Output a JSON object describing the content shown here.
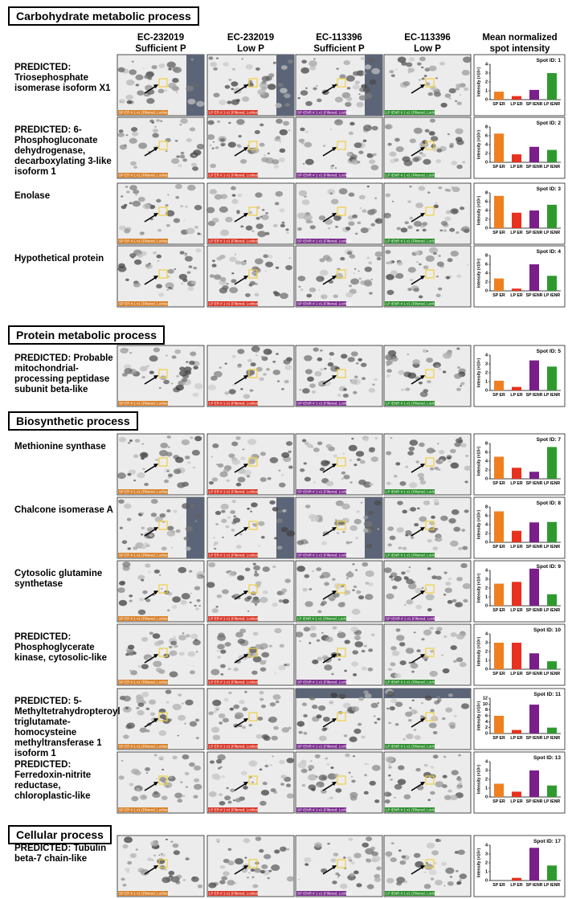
{
  "headers": [
    [
      "EC-232019",
      "Sufficient P"
    ],
    [
      "EC-232019",
      "Low P"
    ],
    [
      "EC-113396",
      "Sufficient P"
    ],
    [
      "EC-113396",
      "Low P"
    ],
    [
      "Mean normalized",
      "spot intensity"
    ]
  ],
  "sections": [
    {
      "title": "Carbohydrate metabolic process",
      "rows": [
        {
          "name": "PREDICTED: Triosephosphate isomerase isoform X1",
          "gels": [
            {
              "label": "SP ER # 1 v1 (Filtered, Locked)",
              "color": "#d9822b"
            },
            {
              "label": "LP ER # 1 v1 (Filtered, Locked)",
              "color": "#d93a2b"
            },
            {
              "label": "SP IENR # 1 v1 (Filtered, Locked)",
              "color": "#7b2d8e"
            },
            {
              "label": "LP IENR # 1 v1 (Filtered, Locked)",
              "color": "#2f8f2f"
            }
          ]
        },
        {
          "name": "PREDICTED: 6-Phosphogluconate dehydrogenase, decarboxylating 3-like isoform 1",
          "gels": [
            {
              "label": "SP ER # 1 v1 (Filtered, Locked)",
              "color": "#d9822b"
            },
            {
              "label": "LP ER # 1 v1 (Filtered, Locked)",
              "color": "#d93a2b"
            },
            {
              "label": "SP IENR # 1 v1 (Filtered, Locked)",
              "color": "#7b2d8e"
            },
            {
              "label": "LP IENR # 1 v1 (Filtered, Locked)",
              "color": "#2f8f2f"
            }
          ]
        },
        {
          "name": "Enolase",
          "gels": [
            {
              "label": "SP ER # 1 v1 (Filtered, Locked)",
              "color": "#d9822b"
            },
            {
              "label": "LP ER # 1 v1 (Filtered, Locked)",
              "color": "#d93a2b"
            },
            {
              "label": "SP IENR # 1 v1 (Filtered, Locked)",
              "color": "#7b2d8e"
            },
            {
              "label": "LP IENR # 1 v1 (Filtered, Locked)",
              "color": "#2f8f2f"
            }
          ]
        },
        {
          "name": "Hypothetical protein",
          "gels": [
            {
              "label": "SP ER # 1 v1 (Filtered, Locked)",
              "color": "#d9822b"
            },
            {
              "label": "LP ER # 1 v1 (Filtered, Locked)",
              "color": "#d93a2b"
            },
            {
              "label": "SP IENR # 1 v1 (Filtered, Locked)",
              "color": "#7b2d8e"
            },
            {
              "label": "LP IENR # 1 v1 (Filtered, Locked)",
              "color": "#2f8f2f"
            }
          ]
        }
      ]
    },
    {
      "title": "Protein metabolic process",
      "rows": [
        {
          "name": "PREDICTED: Probable mitochondrial-processing peptidase subunit beta-like",
          "gels": [
            {
              "label": "SP ER # 1 v1 (Filtered, Locked)",
              "color": "#d9822b"
            },
            {
              "label": "LP ER # 1 v1 (Filtered, Locked)",
              "color": "#d93a2b"
            },
            {
              "label": "SP IENR # 1 v1 (Filtered, Locked)",
              "color": "#7b2d8e"
            },
            {
              "label": "LP IENR # 1 v1 (Filtered, Locked)",
              "color": "#2f8f2f"
            }
          ]
        }
      ]
    },
    {
      "title": "Biosynthetic process",
      "rows": [
        {
          "name": "Methionine synthase",
          "gels": [
            {
              "label": "SP ER # 1 v1 (Filtered, Locked)",
              "color": "#d9822b"
            },
            {
              "label": "LP ER # 1 v1 (Filtered, Locked)",
              "color": "#d93a2b"
            },
            {
              "label": "SP IENR # 1 v1 (Filtered, Locked)",
              "color": "#7b2d8e"
            },
            {
              "label": "LP IENR # 1 v1 (Filtered, Locked)",
              "color": "#2f8f2f"
            }
          ]
        },
        {
          "name": "Chalcone isomerase A",
          "gels": [
            {
              "label": "SP ER # 1 v1 (Filtered, Locked)",
              "color": "#d9822b"
            },
            {
              "label": "LP ER # 1 v1 (Filtered, Locked)",
              "color": "#d93a2b"
            },
            {
              "label": "SP IENR # 1 v1 (Filtered, Locked)",
              "color": "#7b2d8e"
            },
            {
              "label": "LP IENR # 1 v1 (Filtered, Locked)",
              "color": "#2f8f2f"
            }
          ]
        },
        {
          "name": "Cytosolic glutamine synthetase",
          "gels": [
            {
              "label": "SP ER # 1 v1 (Filtered, Locked)",
              "color": "#d9822b"
            },
            {
              "label": "LP ER # 1 v1 (Filtered, Locked)",
              "color": "#d93a2b"
            },
            {
              "label": "LP IENR # 1 v1 (Filtered, Locked)",
              "color": "#2f8f2f"
            },
            {
              "label": "SP IENR # 1 v1 (Filtered, Locked)",
              "color": "#7b2d8e"
            }
          ]
        },
        {
          "name": "PREDICTED: Phosphoglycerate kinase, cytosolic-like",
          "gels": [
            {
              "label": "SP ER # 1 v1 (Filtered, Locked)",
              "color": "#d9822b"
            },
            {
              "label": "LP ER # 1 v1 (Filtered, Locked)",
              "color": "#d93a2b"
            },
            {
              "label": "SP IENR # 1 v1 (Filtered, Locked)",
              "color": "#7b2d8e"
            },
            {
              "label": "LP IENR # 1 v1 (Filtered, Locked)",
              "color": "#2f8f2f"
            }
          ]
        },
        {
          "name": "PREDICTED: 5-Methyltetrahydropteroyl triglutamate-homocysteine methyltransferase 1 isoform 1",
          "gels": [
            {
              "label": "SP ER # 1 v1 (Filtered, Locked)",
              "color": "#d9822b"
            },
            {
              "label": "LP ER # 1 v1 (Filtered, Locked)",
              "color": "#d93a2b"
            },
            {
              "label": "SP IENR # 1 v1 (Filtered, Locked)",
              "color": "#7b2d8e"
            },
            {
              "label": "LP IENR # 1 v1 (Filtered, Locked)",
              "color": "#2f8f2f"
            }
          ]
        },
        {
          "name": "PREDICTED: Ferredoxin-nitrite reductase, chloroplastic-like",
          "gels": [
            {
              "label": "SP ER # 1 v1 (Filtered, Locked)",
              "color": "#d9822b"
            },
            {
              "label": "LP ER # 1 v1 (Filtered, Locked)",
              "color": "#d93a2b"
            },
            {
              "label": "SP IENR # 1 v1 (Filtered, Locked)",
              "color": "#7b2d8e"
            },
            {
              "label": "LP IENR # 1 v1 (Filtered, Locked)",
              "color": "#2f8f2f"
            }
          ]
        }
      ]
    },
    {
      "title": "Cellular process",
      "rows": [
        {
          "name": "PREDICTED: Tubulin beta-7 chain-like",
          "gels": [
            {
              "label": "SP ER # 1 v1 (Filtered, Locked)",
              "color": "#d9822b"
            },
            {
              "label": "LP ER # 1 v1 (Filtered, Locked)",
              "color": "#d93a2b"
            },
            {
              "label": "SP IENR # 1 v1 (Filtered, Locked)",
              "color": "#7b2d8e"
            },
            {
              "label": "LP IENR # 1 v1 (Filtered, Locked)",
              "color": "#2f8f2f"
            }
          ]
        }
      ]
    }
  ],
  "chart_data": [
    {
      "type": "bar",
      "title": "Spot ID: 1",
      "ylabel": "Intensity (×10⁴)",
      "categories": [
        "SP ER",
        "LP ER",
        "SP IENR",
        "LP IENR"
      ],
      "colors": [
        "#f07f1f",
        "#e8311e",
        "#7a1f8a",
        "#2e9a2e"
      ],
      "values": [
        0.9,
        0.4,
        1.1,
        3.0
      ],
      "ylim": [
        0,
        4
      ],
      "yticks": [
        0,
        1,
        2,
        3,
        4
      ]
    },
    {
      "type": "bar",
      "title": "Spot ID: 2",
      "ylabel": "Intensity (×10⁴)",
      "categories": [
        "SP ER",
        "LP ER",
        "SP IENR",
        "LP IENR"
      ],
      "colors": [
        "#f07f1f",
        "#e8311e",
        "#7a1f8a",
        "#2e9a2e"
      ],
      "values": [
        6.5,
        1.8,
        3.5,
        2.8
      ],
      "ylim": [
        0,
        8
      ],
      "yticks": [
        0,
        2,
        4,
        6,
        8
      ]
    },
    {
      "type": "bar",
      "title": "Spot ID: 3",
      "ylabel": "Intensity (×10⁴)",
      "categories": [
        "SP ER",
        "LP ER",
        "SP IENR",
        "LP IENR"
      ],
      "colors": [
        "#f07f1f",
        "#e8311e",
        "#7a1f8a",
        "#2e9a2e"
      ],
      "values": [
        7.3,
        3.5,
        4.0,
        5.3
      ],
      "ylim": [
        0,
        8
      ],
      "yticks": [
        0,
        2,
        4,
        6,
        8
      ]
    },
    {
      "type": "bar",
      "title": "Spot ID: 4",
      "ylabel": "Intensity (×10⁴)",
      "categories": [
        "SP ER",
        "LP ER",
        "SP IENR",
        "LP IENR"
      ],
      "colors": [
        "#f07f1f",
        "#e8311e",
        "#7a1f8a",
        "#2e9a2e"
      ],
      "values": [
        2.8,
        0.5,
        6.0,
        3.4
      ],
      "ylim": [
        0,
        8
      ],
      "yticks": [
        0,
        2,
        4,
        6,
        8
      ]
    },
    {
      "type": "bar",
      "title": "Spot ID: 5",
      "ylabel": "Intensity (×10⁴)",
      "categories": [
        "SP ER",
        "LP ER",
        "SP IENR",
        "LP IENR"
      ],
      "colors": [
        "#f07f1f",
        "#e8311e",
        "#7a1f8a",
        "#2e9a2e"
      ],
      "values": [
        1.1,
        0.4,
        3.4,
        2.7
      ],
      "ylim": [
        0,
        4
      ],
      "yticks": [
        0,
        1,
        2,
        3,
        4
      ]
    },
    {
      "type": "bar",
      "title": "Spot ID: 7",
      "ylabel": "Intensity (×10⁴)",
      "categories": [
        "SP ER",
        "LP ER",
        "SP IENR",
        "LP IENR"
      ],
      "colors": [
        "#f07f1f",
        "#e8311e",
        "#7a1f8a",
        "#2e9a2e"
      ],
      "values": [
        5.0,
        2.5,
        1.6,
        7.2
      ],
      "ylim": [
        0,
        8
      ],
      "yticks": [
        0,
        2,
        4,
        6,
        8
      ]
    },
    {
      "type": "bar",
      "title": "Spot ID: 8",
      "ylabel": "Intensity (×10⁴)",
      "categories": [
        "SP ER",
        "LP ER",
        "SP IENR",
        "LP IENR"
      ],
      "colors": [
        "#f07f1f",
        "#e8311e",
        "#7a1f8a",
        "#2e9a2e"
      ],
      "values": [
        7.0,
        2.6,
        4.5,
        4.6
      ],
      "ylim": [
        0,
        8
      ],
      "yticks": [
        0,
        2,
        4,
        6,
        8
      ]
    },
    {
      "type": "bar",
      "title": "Spot ID: 9",
      "ylabel": "Intensity (×10⁴)",
      "categories": [
        "SP ER",
        "LP ER",
        "SP IENR",
        "LP IENR"
      ],
      "colors": [
        "#f07f1f",
        "#e8311e",
        "#7a1f8a",
        "#2e9a2e"
      ],
      "values": [
        2.5,
        2.7,
        4.2,
        1.3
      ],
      "ylim": [
        0,
        4
      ],
      "yticks": [
        0,
        1,
        2,
        3,
        4
      ]
    },
    {
      "type": "bar",
      "title": "Spot ID: 10",
      "ylabel": "Intensity (×10⁴)",
      "categories": [
        "SP ER",
        "LP ER",
        "SP IENR",
        "LP IENR"
      ],
      "colors": [
        "#f07f1f",
        "#e8311e",
        "#7a1f8a",
        "#2e9a2e"
      ],
      "values": [
        3.0,
        3.0,
        1.8,
        0.9
      ],
      "ylim": [
        0,
        4
      ],
      "yticks": [
        0,
        1,
        2,
        3,
        4
      ]
    },
    {
      "type": "bar",
      "title": "Spot ID: 11",
      "ylabel": "Intensity (×10⁴)",
      "categories": [
        "SP ER",
        "LP ER",
        "SP IENR",
        "LP IENR"
      ],
      "colors": [
        "#f07f1f",
        "#e8311e",
        "#7a1f8a",
        "#2e9a2e"
      ],
      "values": [
        6.0,
        1.2,
        9.8,
        2.0
      ],
      "ylim": [
        0,
        12
      ],
      "yticks": [
        0,
        2,
        4,
        6,
        8,
        10,
        12
      ]
    },
    {
      "type": "bar",
      "title": "Spot ID: 13",
      "ylabel": "Intensity (×10⁴)",
      "categories": [
        "SP ER",
        "LP ER",
        "SP IENR",
        "LP IENR"
      ],
      "colors": [
        "#f07f1f",
        "#e8311e",
        "#7a1f8a",
        "#2e9a2e"
      ],
      "values": [
        1.5,
        0.6,
        3.0,
        1.3
      ],
      "ylim": [
        0,
        4
      ],
      "yticks": [
        0,
        1,
        2,
        3,
        4
      ]
    },
    {
      "type": "bar",
      "title": "Spot ID: 17",
      "ylabel": "Intensity (×10⁴)",
      "categories": [
        "SP ER",
        "LP ER",
        "SP IENR",
        "LP IENR"
      ],
      "colors": [
        "#f07f1f",
        "#e8311e",
        "#7a1f8a",
        "#2e9a2e"
      ],
      "values": [
        0,
        0.3,
        3.7,
        1.7
      ],
      "ylim": [
        0,
        4
      ],
      "yticks": [
        0,
        1,
        2,
        3,
        4
      ]
    }
  ]
}
